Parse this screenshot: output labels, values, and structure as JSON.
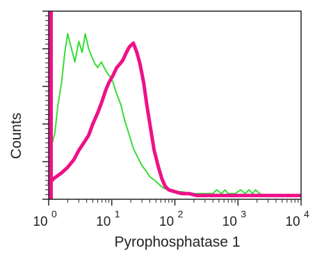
{
  "chart_data": {
    "type": "line",
    "title": "",
    "xlabel": "Pyrophosphatase 1",
    "ylabel": "Counts",
    "x_scale": "log",
    "xlim": [
      1,
      10000
    ],
    "ylim": [
      0,
      100
    ],
    "x_ticks": [
      {
        "base": "10",
        "exp": "0",
        "value": 1
      },
      {
        "base": "10",
        "exp": "1",
        "value": 10
      },
      {
        "base": "10",
        "exp": "2",
        "value": 100
      },
      {
        "base": "10",
        "exp": "3",
        "value": 1000
      },
      {
        "base": "10",
        "exp": "4",
        "value": 10000
      }
    ],
    "grid": false,
    "legend": "none",
    "series": [
      {
        "color": "#33dd33",
        "x": [
          1.0,
          1.1,
          1.25,
          1.4,
          1.6,
          1.8,
          2.0,
          2.3,
          2.6,
          3.0,
          3.4,
          3.8,
          4.3,
          4.8,
          5.4,
          6.0,
          6.8,
          7.6,
          8.5,
          9.5,
          10.5,
          12,
          14,
          16,
          19,
          22,
          26,
          30,
          35,
          40,
          48,
          56,
          65,
          80,
          100,
          130,
          180,
          250,
          330,
          400,
          460,
          550,
          620,
          700,
          800,
          900,
          1100,
          1300,
          1500,
          1700,
          1900,
          2200,
          2600,
          3200,
          4000,
          6000,
          10000
        ],
        "y": [
          25,
          28,
          35,
          50,
          62,
          78,
          88,
          80,
          73,
          84,
          78,
          88,
          80,
          76,
          72,
          70,
          73,
          70,
          67,
          65,
          62,
          56,
          50,
          42,
          34,
          27,
          22,
          18,
          15,
          12,
          10,
          8,
          6,
          5,
          4,
          4,
          3,
          3,
          3,
          3,
          5,
          3,
          5,
          3,
          3,
          3,
          5,
          3,
          5,
          3,
          5,
          3,
          2,
          2,
          2,
          2,
          2
        ]
      },
      {
        "color": "#ee1188",
        "x": [
          1.0,
          1.2,
          1.6,
          2.0,
          2.5,
          3.0,
          3.6,
          4.3,
          5.0,
          6.0,
          7.0,
          8.0,
          9.0,
          10.5,
          12,
          13.5,
          15,
          17,
          19,
          22,
          25,
          28,
          32,
          36,
          41,
          47,
          55,
          62,
          70,
          80,
          100,
          130,
          170,
          220,
          300,
          500,
          1000,
          2000,
          10000
        ],
        "y": [
          8,
          11,
          14,
          17,
          21,
          26,
          30,
          34,
          40,
          46,
          52,
          58,
          62,
          66,
          70,
          72,
          74,
          78,
          81,
          83,
          78,
          72,
          62,
          50,
          38,
          26,
          17,
          11,
          7,
          5,
          4,
          3,
          3,
          2,
          2,
          2,
          2,
          2,
          2
        ]
      }
    ],
    "baseline_spike": {
      "color": "#ee1188",
      "x": 1,
      "y": 100
    }
  }
}
